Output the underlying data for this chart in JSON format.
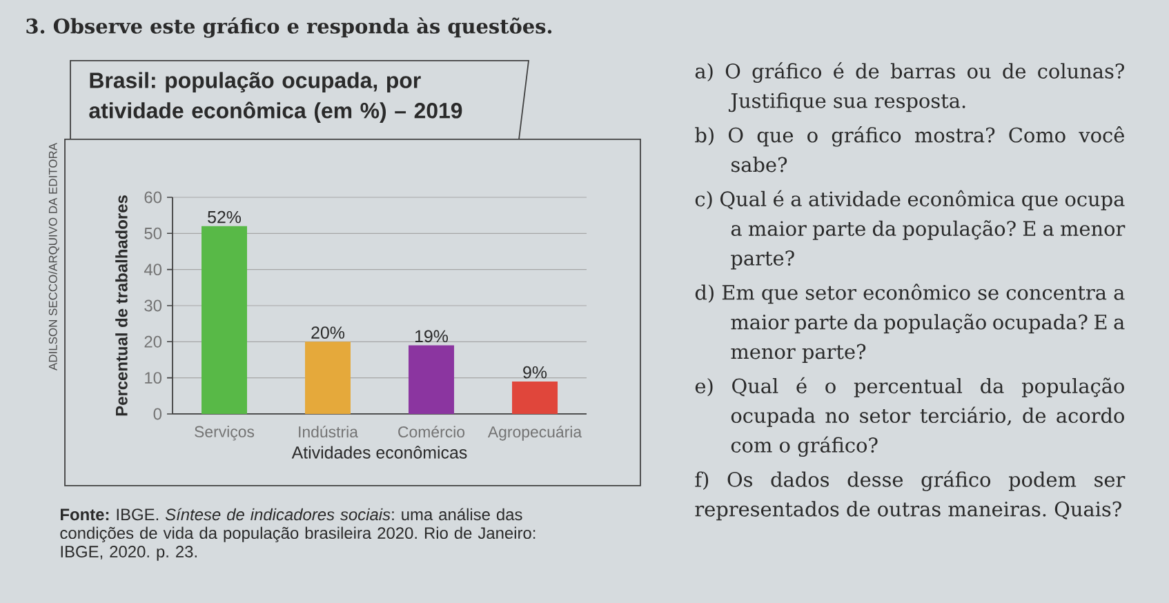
{
  "chart_data": {
    "type": "bar",
    "title": "Brasil: população ocupada, por atividade econômica (em %) – 2019",
    "xlabel": "Atividades econômicas",
    "ylabel": "Percentual de trabalhadores",
    "categories": [
      "Serviços",
      "Indústria",
      "Comércio",
      "Agropecuária"
    ],
    "values": [
      52,
      20,
      19,
      9
    ],
    "colors": [
      "#58b947",
      "#e5a93b",
      "#8b35a0",
      "#e0463b"
    ],
    "value_labels": [
      "52%",
      "20%",
      "19%",
      "9%"
    ],
    "ylim": [
      0,
      60
    ],
    "yticks": [
      0,
      10,
      20,
      30,
      40,
      50,
      60
    ],
    "grid": "y",
    "annotations": [
      "3. Observe este gráfico e responda às questões.",
      "ADILSON SECCO/ARQUIVO DA EDITORA",
      "**Fonte:** IBGE. *Síntese de indicadores sociais*: uma análise das condições de vida da população brasileira 2020. Rio de Janeiro: IBGE, 2020. p. 23.",
      "a) O gráfico é de barras ou de colunas? Justifique sua resposta.",
      "b) O que o gráfico mostra? Como você sabe?",
      "c) Qual é a atividade econômica que ocupa a maior parte da população? E a menor parte?",
      "d) Em que setor econômico se concentra a maior parte da população ocupada? E a menor parte?",
      "e) Qual é o percentual da população ocupada no setor terciário, de acordo com o gráfico?",
      "f) Os dados desse gráfico podem ser representados de outras maneiras. Quais?"
    ]
  }
}
